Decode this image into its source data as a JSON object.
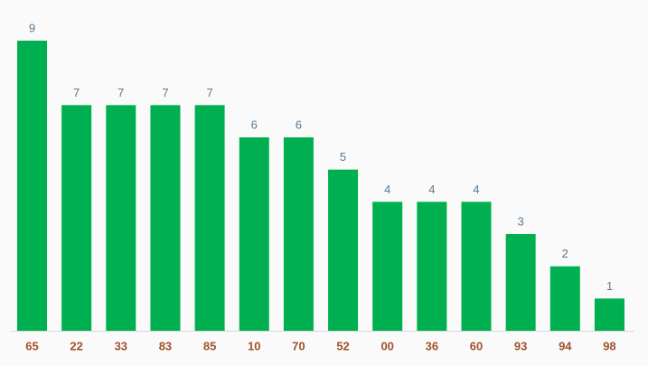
{
  "chart_data": {
    "type": "bar",
    "categories": [
      "65",
      "22",
      "33",
      "83",
      "85",
      "10",
      "70",
      "52",
      "00",
      "36",
      "60",
      "93",
      "94",
      "98"
    ],
    "values": [
      9,
      7,
      7,
      7,
      7,
      6,
      6,
      5,
      4,
      4,
      4,
      3,
      2,
      1
    ],
    "color": "#00b050"
  }
}
